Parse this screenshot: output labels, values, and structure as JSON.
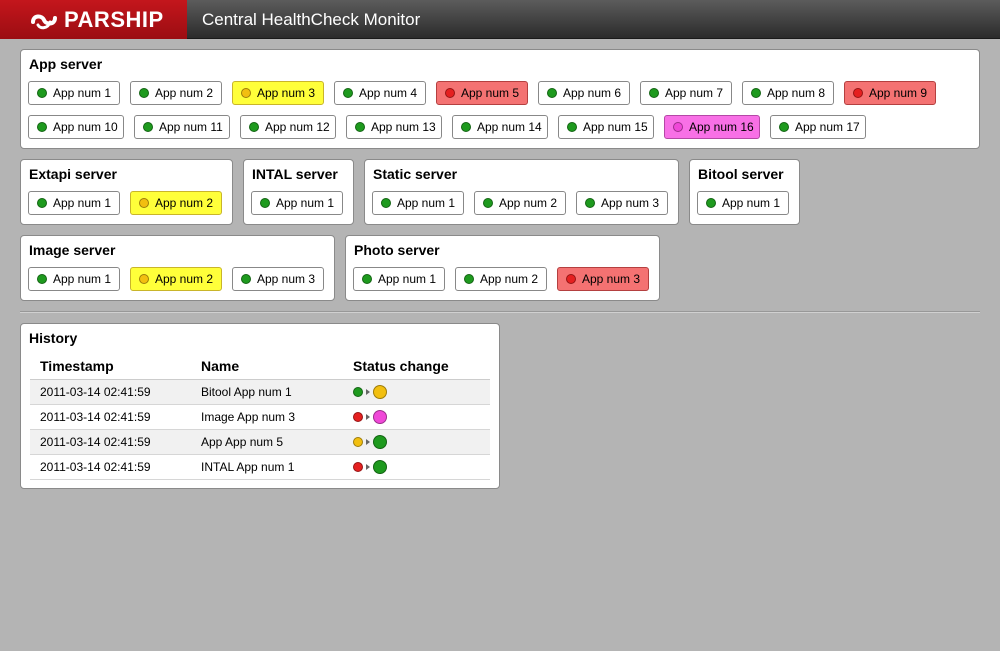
{
  "header": {
    "brand": "PARSHIP",
    "title": "Central HealthCheck Monitor",
    "brand_color": "#c4161c"
  },
  "status_colors": {
    "ok": "#1e9a1e",
    "warn": "#f2bf10",
    "error": "#e52020",
    "pink": "#f048d8"
  },
  "panels": {
    "app": {
      "title": "App server",
      "apps": [
        {
          "label": "App num 1",
          "status": "ok"
        },
        {
          "label": "App num 2",
          "status": "ok"
        },
        {
          "label": "App num 3",
          "status": "warn"
        },
        {
          "label": "App num 4",
          "status": "ok"
        },
        {
          "label": "App num 5",
          "status": "error"
        },
        {
          "label": "App num 6",
          "status": "ok"
        },
        {
          "label": "App num 7",
          "status": "ok"
        },
        {
          "label": "App num 8",
          "status": "ok"
        },
        {
          "label": "App num 9",
          "status": "error"
        },
        {
          "label": "App num 10",
          "status": "ok"
        },
        {
          "label": "App num 11",
          "status": "ok"
        },
        {
          "label": "App num 12",
          "status": "ok"
        },
        {
          "label": "App num 13",
          "status": "ok"
        },
        {
          "label": "App num 14",
          "status": "ok"
        },
        {
          "label": "App num 15",
          "status": "ok"
        },
        {
          "label": "App num 16",
          "status": "pink"
        },
        {
          "label": "App num 17",
          "status": "ok"
        }
      ]
    },
    "extapi": {
      "title": "Extapi server",
      "apps": [
        {
          "label": "App num 1",
          "status": "ok"
        },
        {
          "label": "App num 2",
          "status": "warn"
        }
      ]
    },
    "intal": {
      "title": "INTAL server",
      "apps": [
        {
          "label": "App num 1",
          "status": "ok"
        }
      ]
    },
    "static": {
      "title": "Static server",
      "apps": [
        {
          "label": "App num 1",
          "status": "ok"
        },
        {
          "label": "App num 2",
          "status": "ok"
        },
        {
          "label": "App num 3",
          "status": "ok"
        }
      ]
    },
    "bitool": {
      "title": "Bitool server",
      "apps": [
        {
          "label": "App num 1",
          "status": "ok"
        }
      ]
    },
    "image": {
      "title": "Image server",
      "apps": [
        {
          "label": "App num 1",
          "status": "ok"
        },
        {
          "label": "App num 2",
          "status": "warn"
        },
        {
          "label": "App num 3",
          "status": "ok"
        }
      ]
    },
    "photo": {
      "title": "Photo server",
      "apps": [
        {
          "label": "App num 1",
          "status": "ok"
        },
        {
          "label": "App num 2",
          "status": "ok"
        },
        {
          "label": "App num 3",
          "status": "error"
        }
      ]
    }
  },
  "history": {
    "title": "History",
    "columns": [
      "Timestamp",
      "Name",
      "Status change"
    ],
    "rows": [
      {
        "timestamp": "2011-03-14 02:41:59",
        "name": "Bitool App num 1",
        "from": "ok",
        "to": "warn"
      },
      {
        "timestamp": "2011-03-14 02:41:59",
        "name": "Image App num 3",
        "from": "error",
        "to": "pink"
      },
      {
        "timestamp": "2011-03-14 02:41:59",
        "name": "App App num 5",
        "from": "warn",
        "to": "ok"
      },
      {
        "timestamp": "2011-03-14 02:41:59",
        "name": "INTAL App num 1",
        "from": "error",
        "to": "ok"
      }
    ]
  }
}
